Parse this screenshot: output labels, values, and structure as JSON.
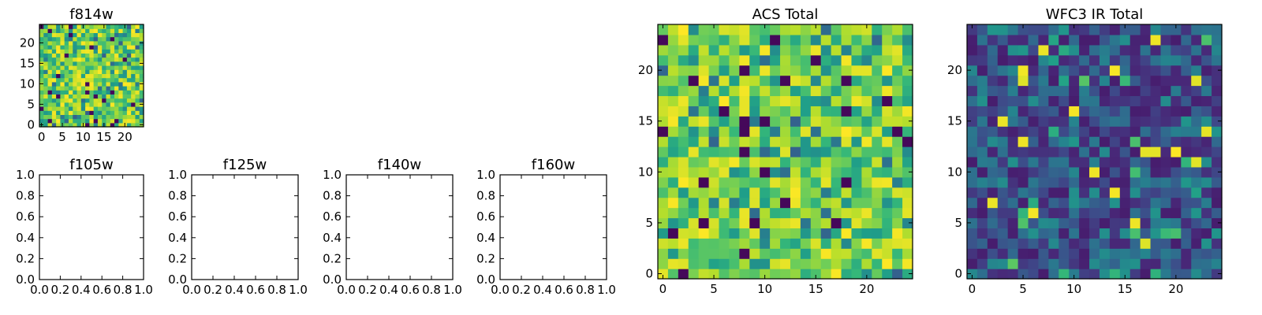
{
  "chart_data": [
    {
      "type": "heatmap",
      "title": "f814w",
      "grid_size": 25,
      "colormap": "viridis",
      "xticks": [
        0,
        5,
        10,
        15,
        20
      ],
      "yticks": [
        0,
        5,
        10,
        15,
        20
      ],
      "values": "uniform-ish random, mostly high (green/yellow)"
    },
    {
      "type": "empty",
      "title": "f105w",
      "xticks": [
        "0.0",
        "0.2",
        "0.4",
        "0.6",
        "0.8",
        "1.0"
      ],
      "yticks": [
        "0.0",
        "0.2",
        "0.4",
        "0.6",
        "0.8",
        "1.0"
      ]
    },
    {
      "type": "empty",
      "title": "f125w",
      "xticks": [
        "0.0",
        "0.2",
        "0.4",
        "0.6",
        "0.8",
        "1.0"
      ],
      "yticks": [
        "0.0",
        "0.2",
        "0.4",
        "0.6",
        "0.8",
        "1.0"
      ]
    },
    {
      "type": "empty",
      "title": "f140w",
      "xticks": [
        "0.0",
        "0.2",
        "0.4",
        "0.6",
        "0.8",
        "1.0"
      ],
      "yticks": [
        "0.0",
        "0.2",
        "0.4",
        "0.6",
        "0.8",
        "1.0"
      ]
    },
    {
      "type": "empty",
      "title": "f160w",
      "xticks": [
        "0.0",
        "0.2",
        "0.4",
        "0.6",
        "0.8",
        "1.0"
      ],
      "yticks": [
        "0.0",
        "0.2",
        "0.4",
        "0.6",
        "0.8",
        "1.0"
      ]
    },
    {
      "type": "heatmap",
      "title": "ACS Total",
      "grid_size": 25,
      "colormap": "viridis",
      "xticks": [
        0,
        5,
        10,
        15,
        20
      ],
      "yticks": [
        0,
        5,
        10,
        15,
        20
      ],
      "values": "random, mostly high (green/yellow)"
    },
    {
      "type": "heatmap",
      "title": "WFC3 IR Total",
      "grid_size": 25,
      "colormap": "viridis",
      "xticks": [
        0,
        5,
        10,
        15,
        20
      ],
      "yticks": [
        0,
        5,
        10,
        15,
        20
      ],
      "values": "random, mostly low (dark blue) with a few bright yellow pixels"
    }
  ]
}
